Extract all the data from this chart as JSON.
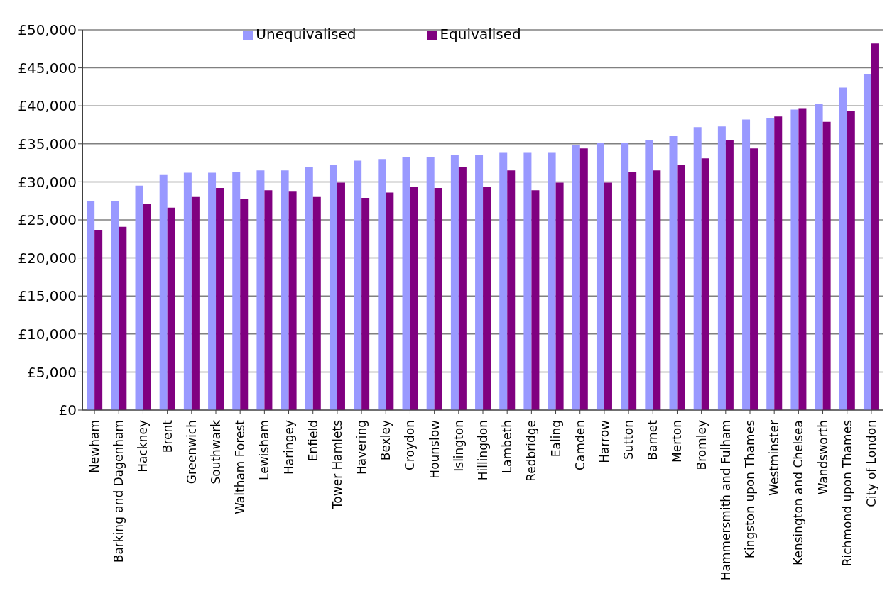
{
  "chart_data": {
    "type": "bar",
    "categories": [
      "Newham",
      "Barking and Dagenham",
      "Hackney",
      "Brent",
      "Greenwich",
      "Southwark",
      "Waltham Forest",
      "Lewisham",
      "Haringey",
      "Enfield",
      "Tower Hamlets",
      "Havering",
      "Bexley",
      "Croydon",
      "Hounslow",
      "Islington",
      "Hillingdon",
      "Lambeth",
      "Redbridge",
      "Ealing",
      "Camden",
      "Harrow",
      "Sutton",
      "Barnet",
      "Merton",
      "Bromley",
      "Hammersmith and Fulham",
      "Kingston upon Thames",
      "Westminster",
      "Kensington and Chelsea",
      "Wandsworth",
      "Richmond upon Thames",
      "City of London"
    ],
    "series": [
      {
        "name": "Unequivalised",
        "color": "#9999ff",
        "values": [
          27500,
          27500,
          29500,
          31000,
          31200,
          31200,
          31300,
          31500,
          31500,
          31900,
          32200,
          32800,
          33000,
          33200,
          33300,
          33500,
          33500,
          33900,
          33900,
          33900,
          34800,
          35100,
          35100,
          35500,
          36100,
          37200,
          37300,
          38200,
          38400,
          39500,
          40200,
          42400,
          44200
        ]
      },
      {
        "name": "Equivalised",
        "color": "#800080",
        "values": [
          23700,
          24100,
          27100,
          26600,
          28100,
          29200,
          27700,
          28900,
          28800,
          28100,
          29900,
          27900,
          28600,
          29300,
          29200,
          31900,
          29300,
          31500,
          28900,
          29900,
          34400,
          29900,
          31300,
          31500,
          32200,
          33100,
          35500,
          34400,
          38600,
          39700,
          37900,
          39300,
          48200
        ]
      }
    ],
    "ylim": [
      0,
      50000
    ],
    "yticks": [
      {
        "value": 0,
        "label": "£0"
      },
      {
        "value": 5000,
        "label": "£5,000"
      },
      {
        "value": 10000,
        "label": "£10,000"
      },
      {
        "value": 15000,
        "label": "£15,000"
      },
      {
        "value": 20000,
        "label": "£20,000"
      },
      {
        "value": 25000,
        "label": "£25,000"
      },
      {
        "value": 30000,
        "label": "£30,000"
      },
      {
        "value": 35000,
        "label": "£35,000"
      },
      {
        "value": 40000,
        "label": "£40,000"
      },
      {
        "value": 45000,
        "label": "£45,000"
      },
      {
        "value": 50000,
        "label": "£50,000"
      }
    ],
    "grid": "y",
    "legend": "top"
  }
}
